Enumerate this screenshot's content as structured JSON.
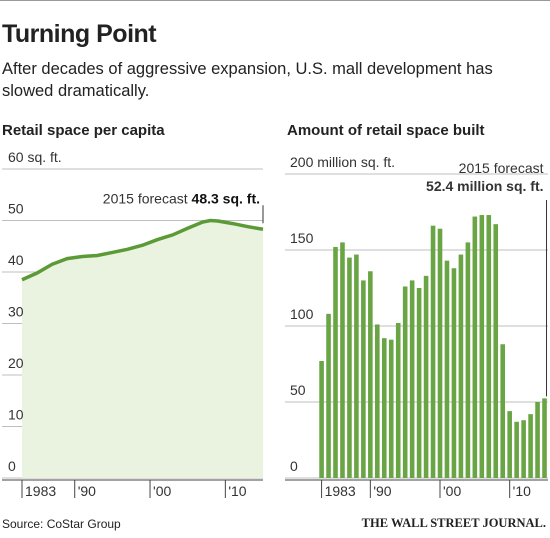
{
  "title": "Turning Point",
  "subtitle": "After decades of aggressive expansion, U.S. mall development has slowed dramatically.",
  "source": "Source: CoStar Group",
  "publisher": "THE WALL STREET JOURNAL.",
  "chart_data": [
    {
      "type": "area",
      "title": "Retail space per capita",
      "x": [
        1983,
        1985,
        1987,
        1989,
        1991,
        1993,
        1995,
        1997,
        1999,
        2001,
        2003,
        2005,
        2007,
        2008,
        2009,
        2011,
        2013,
        2015
      ],
      "values": [
        38.5,
        39.8,
        41.5,
        42.6,
        43.0,
        43.2,
        43.8,
        44.4,
        45.2,
        46.3,
        47.2,
        48.5,
        49.7,
        50.0,
        49.9,
        49.4,
        48.8,
        48.3
      ],
      "value_labels": [
        null,
        null,
        null,
        null,
        null,
        null,
        null,
        null,
        null,
        null,
        null,
        null,
        null,
        null,
        null,
        null,
        null,
        "48.3 sq. ft."
      ],
      "annotation": "2015 forecast",
      "color": "#5b9a36",
      "fill": "#eaf3df",
      "xlim": [
        1983,
        2015
      ],
      "xticks": [
        {
          "value": 1983,
          "label": "1983"
        },
        {
          "value": 1990,
          "label": "'90"
        },
        {
          "value": 2000,
          "label": "'00"
        },
        {
          "value": 2010,
          "label": "'10"
        }
      ],
      "ylim": [
        0,
        60
      ],
      "yticks": [
        0,
        10,
        20,
        30,
        40,
        50,
        {
          "value": 60,
          "label": "60 sq. ft."
        }
      ],
      "grid": true
    },
    {
      "type": "bar",
      "title": "Amount of retail space built",
      "x": [
        1983,
        1984,
        1985,
        1986,
        1987,
        1988,
        1989,
        1990,
        1991,
        1992,
        1993,
        1994,
        1995,
        1996,
        1997,
        1998,
        1999,
        2000,
        2001,
        2002,
        2003,
        2004,
        2005,
        2006,
        2007,
        2008,
        2009,
        2010,
        2011,
        2012,
        2013,
        2014,
        2015
      ],
      "values": [
        77,
        108,
        152,
        155,
        145,
        147,
        130,
        136,
        101,
        92,
        91,
        102,
        126,
        130,
        125,
        133,
        166,
        164,
        143,
        138,
        147,
        155,
        172,
        173,
        173,
        167,
        88,
        44,
        37,
        38,
        42,
        50,
        52.4
      ],
      "value_labels": [
        null,
        null,
        null,
        null,
        null,
        null,
        null,
        null,
        null,
        null,
        null,
        null,
        null,
        null,
        null,
        null,
        null,
        null,
        null,
        null,
        null,
        null,
        null,
        null,
        null,
        null,
        null,
        null,
        null,
        null,
        null,
        null,
        "52.4 million sq. ft."
      ],
      "annotation": "2015 forecast",
      "color": "#6aa545",
      "xlim": [
        1982.2,
        2015.5
      ],
      "xticks": [
        {
          "value": 1983,
          "label": "1983"
        },
        {
          "value": 1990,
          "label": "'90"
        },
        {
          "value": 2000,
          "label": "'00"
        },
        {
          "value": 2010,
          "label": "'10"
        }
      ],
      "ylim": [
        0,
        200
      ],
      "yticks": [
        0,
        50,
        100,
        150,
        {
          "value": 200,
          "label": "200 million sq. ft."
        }
      ],
      "grid": true
    }
  ]
}
